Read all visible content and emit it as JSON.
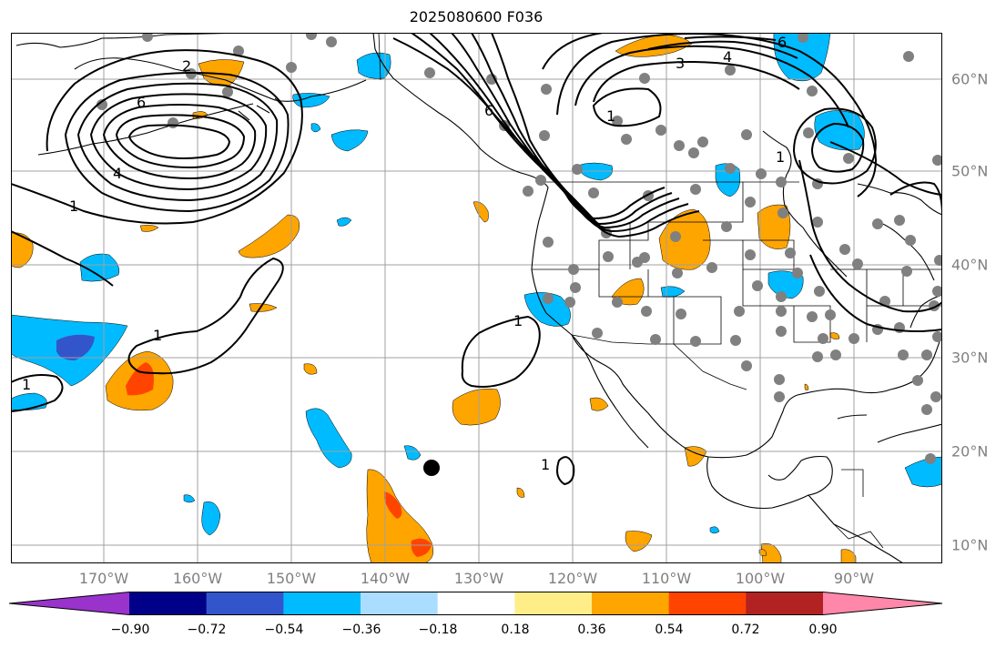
{
  "title": "2025080600 F036",
  "lon_labels": [
    "170°W",
    "160°W",
    "150°W",
    "140°W",
    "130°W",
    "120°W",
    "110°W",
    "100°W",
    "90°W"
  ],
  "lat_labels": [
    "60°N",
    "50°N",
    "40°N",
    "30°N",
    "20°N",
    "10°N"
  ],
  "colorbar": {
    "ticks": [
      "−0.90",
      "−0.72",
      "−0.54",
      "−0.36",
      "−0.18",
      "0.18",
      "0.36",
      "0.54",
      "0.72",
      "0.90"
    ],
    "colors": [
      "#9933cc",
      "#000088",
      "#3355cc",
      "#00bbff",
      "#aaddff",
      "#ffffff",
      "#ffee88",
      "#ffa500",
      "#ff4400",
      "#b22222",
      "#ff88aa"
    ]
  },
  "contour_labels": [
    "6",
    "3",
    "4",
    "6",
    "1",
    "6",
    "1",
    "2",
    "4",
    "1",
    "1",
    "1",
    "1",
    "1"
  ],
  "colors": {
    "positive_fill": "#ffa500",
    "positive_core": "#ff4400",
    "negative_fill": "#00bbff",
    "negative_core": "#3355cc",
    "station_dot": "#808080"
  }
}
